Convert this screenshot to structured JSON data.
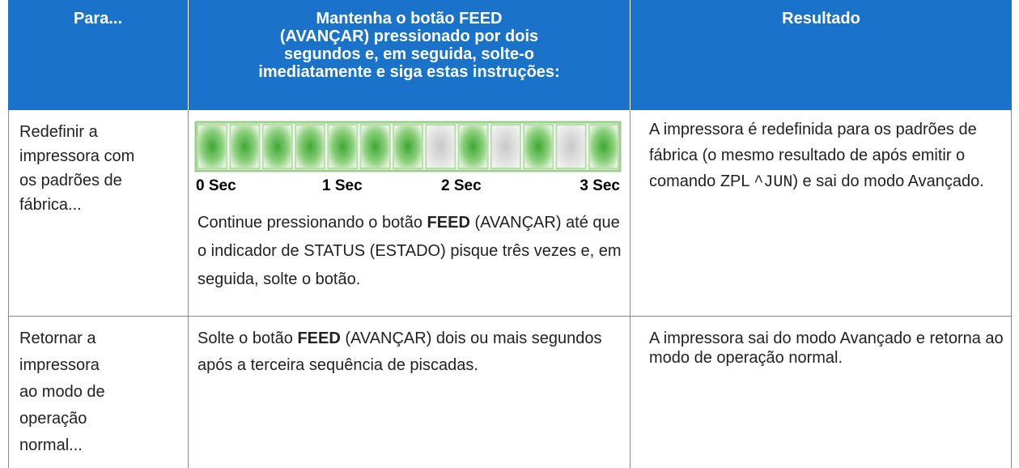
{
  "table": {
    "header": [
      "Para...",
      [
        "Mantenha o botão FEED",
        "(AVANÇAR) pressionado por dois",
        "segundos e, em seguida, solte-o",
        "imediatamente e siga estas instruções:"
      ],
      "Resultado"
    ],
    "rows": [
      {
        "action": [
          "Redefinir a",
          "impressora com",
          "os padrões de",
          "fábrica..."
        ],
        "timeline": [
          "0 Sec",
          "1 Sec",
          "2 Sec",
          "3 Sec"
        ],
        "instruction": [
          "Continue pressionando o botão ",
          "FEED",
          " (AVANÇAR) até que o indicador de STATUS (ESTADO) pisque três vezes e, em seguida, solte o botão."
        ],
        "result": [
          "A impressora é redefinida para os padrões de fábrica (o mesmo resultado de após emitir o comando ZPL ",
          "^JUN",
          ") e sai do modo Avançado."
        ]
      },
      {
        "action": [
          "Retornar a",
          "impressora",
          "ao modo de",
          "operação",
          "normal..."
        ],
        "instruction": [
          "Solte o botão ",
          "FEED",
          " (AVANÇAR) dois ou mais segundos após a terceira sequência de piscadas."
        ],
        "result": [
          "A impressora sai do modo Avançado e retorna ao modo de operação normal."
        ]
      }
    ]
  }
}
